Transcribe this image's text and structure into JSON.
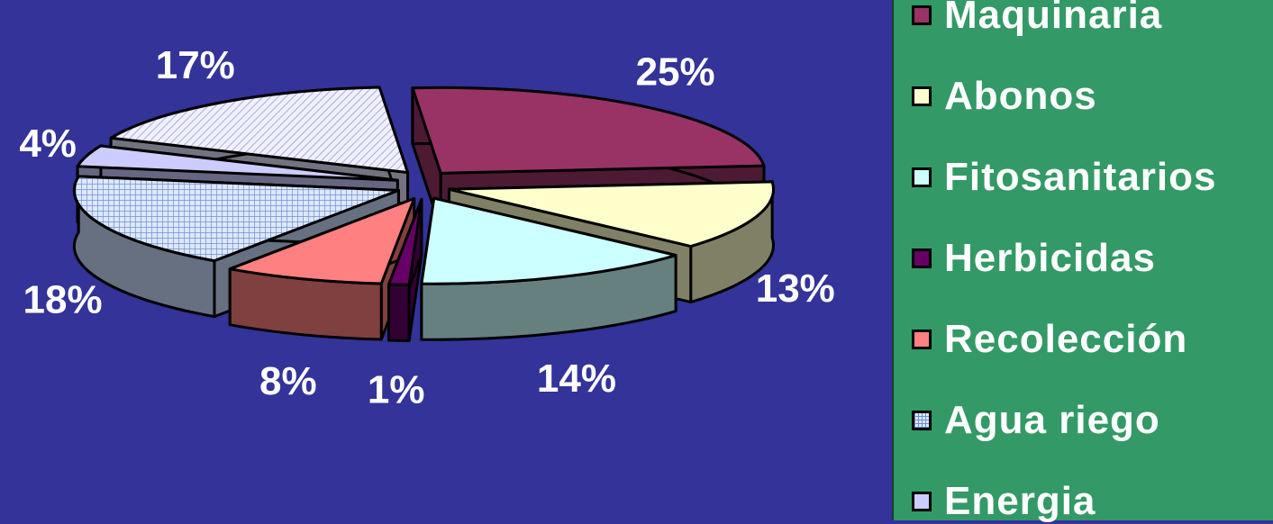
{
  "chart_data": {
    "type": "pie",
    "title": "",
    "slices": [
      {
        "label": "Maquinaria",
        "value": 25,
        "display": "25%",
        "color": "#993366",
        "side": "#4d1a33"
      },
      {
        "label": "Abonos",
        "value": 13,
        "display": "13%",
        "color": "#ffffcc",
        "side": "#808066"
      },
      {
        "label": "Fitosanitarios",
        "value": 14,
        "display": "14%",
        "color": "#ccffff",
        "side": "#668080"
      },
      {
        "label": "Herbicidas",
        "value": 1,
        "display": "1%",
        "color": "#660066",
        "side": "#330033"
      },
      {
        "label": "Recolección",
        "value": 8,
        "display": "8%",
        "color": "#ff8080",
        "side": "#804040"
      },
      {
        "label": "Agua riego",
        "value": 18,
        "display": "18%",
        "color": "#cce0ff",
        "side": "#667080",
        "pattern": "grid"
      },
      {
        "label": "Energia",
        "value": 4,
        "display": "4%",
        "color": "#ccccff",
        "side": "#666680"
      },
      {
        "label": "",
        "value": 17,
        "display": "17%",
        "color": "#e6e6ff",
        "side": "#737380",
        "pattern": "hatch"
      }
    ],
    "legend_position": "right"
  },
  "legend": {
    "items": [
      {
        "label": "Maquinaria",
        "color": "#993366"
      },
      {
        "label": "Abonos",
        "color": "#ffffcc"
      },
      {
        "label": "Fitosanitarios",
        "color": "#ccffff"
      },
      {
        "label": "Herbicidas",
        "color": "#660066"
      },
      {
        "label": "Recolección",
        "color": "#ff8080"
      },
      {
        "label": "Agua riego",
        "color": "#cce0ff",
        "pattern": "grid"
      },
      {
        "label": "Energia",
        "color": "#ccccff"
      }
    ]
  },
  "colors": {
    "background": "#333399",
    "legend_background": "#339966",
    "text": "#ffffff"
  }
}
